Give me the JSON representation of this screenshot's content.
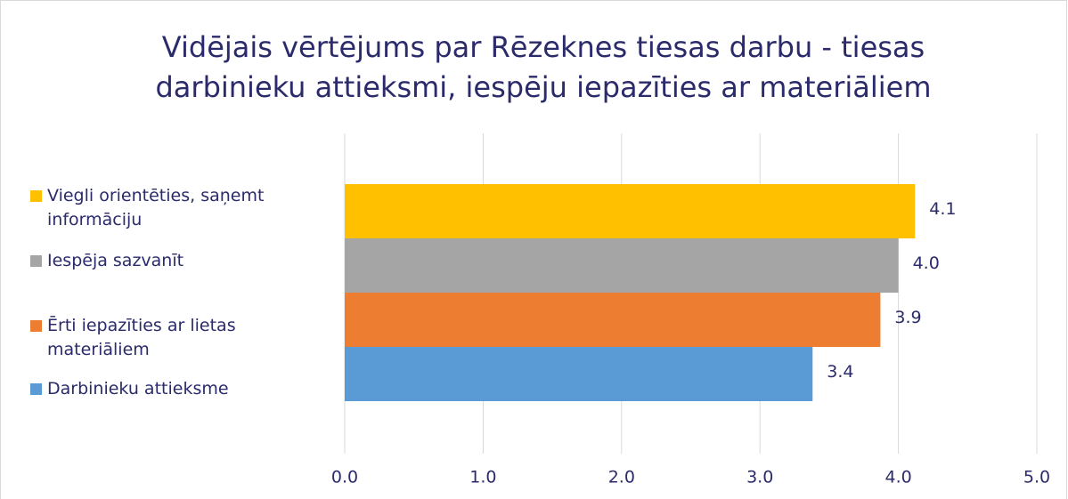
{
  "chart_data": {
    "type": "bar",
    "orientation": "horizontal",
    "title": [
      "Vidējais vērtējums par Rēzeknes tiesas darbu -  tiesas",
      "darbinieku attieksmi, iespēju iepazīties ar materiāliem"
    ],
    "series": [
      {
        "name": "Viegli orientēties, saņemt informāciju",
        "color": "#ffc000",
        "values": [
          4.12
        ],
        "value_labels": [
          "4.1"
        ]
      },
      {
        "name": "Iespēja sazvanīt",
        "color": "#a5a5a5",
        "values": [
          4.0
        ],
        "value_labels": [
          "4.0"
        ]
      },
      {
        "name": "Ērti iepazīties ar lietas materiāliem",
        "color": "#ed7d31",
        "values": [
          3.87
        ],
        "value_labels": [
          "3.9"
        ]
      },
      {
        "name": "Darbinieku attieksme",
        "color": "#5b9bd5",
        "values": [
          3.38
        ],
        "value_labels": [
          "3.4"
        ]
      }
    ],
    "xlim": [
      0,
      5
    ],
    "xticks": [
      {
        "value": 0,
        "label": "0.0"
      },
      {
        "value": 1,
        "label": "1.0"
      },
      {
        "value": 2,
        "label": "2.0"
      },
      {
        "value": 3,
        "label": "3.0"
      },
      {
        "value": 4,
        "label": "4.0"
      },
      {
        "value": 5,
        "label": "5.0"
      }
    ],
    "grid": true
  }
}
